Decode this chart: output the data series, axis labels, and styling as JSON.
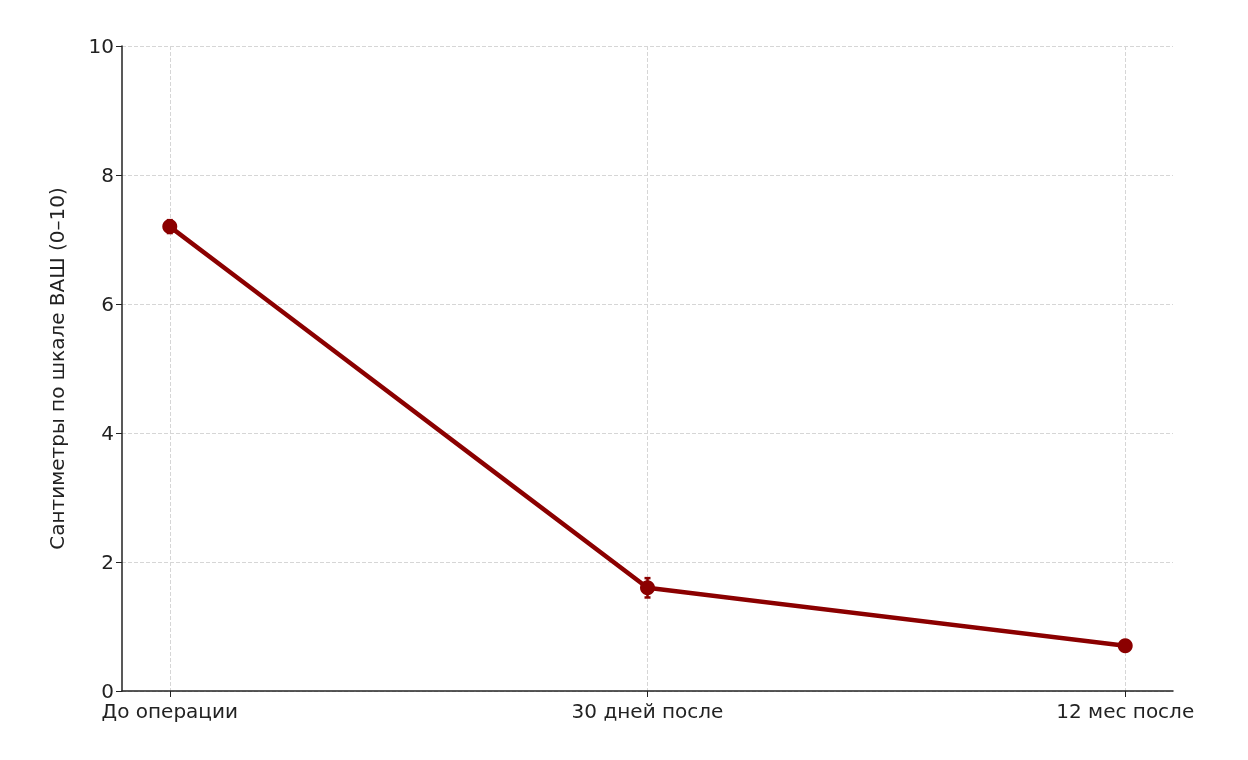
{
  "chart_data": {
    "type": "line",
    "ylabel": "Сантиметры по шкале ВАШ (0–10)",
    "categories": [
      "До операции",
      "30 дней после",
      "12 мес после"
    ],
    "series": [
      {
        "color": "#8b0000",
        "values": [
          7.2,
          1.6,
          0.7
        ],
        "errors": [
          0.1,
          0.15,
          null
        ]
      }
    ],
    "ylim": [
      0,
      10
    ],
    "yticks": [
      0,
      2,
      4,
      6,
      8,
      10
    ],
    "grid": true,
    "marker": "circle",
    "line_style": "solid"
  }
}
